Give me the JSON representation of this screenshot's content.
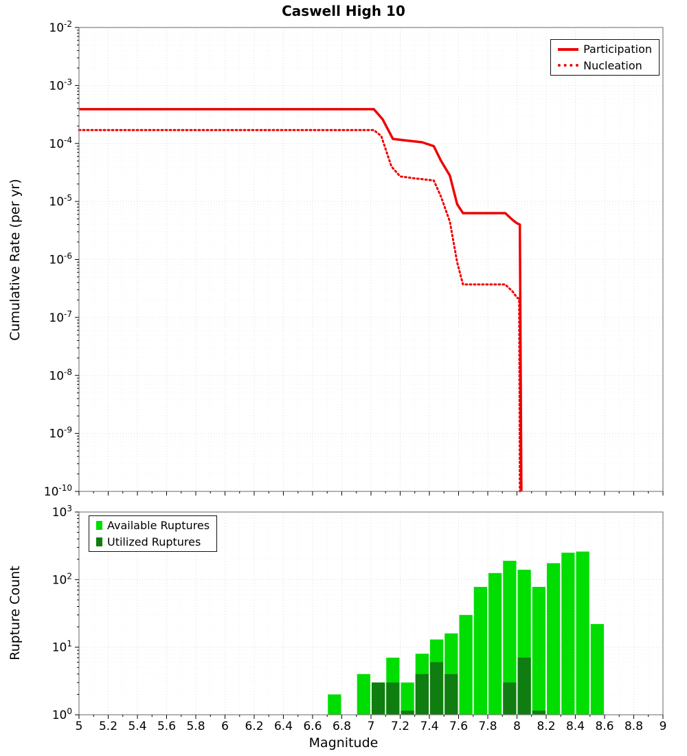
{
  "title": "Caswell High 10",
  "axes": {
    "x_label": "Magnitude",
    "x_tick_labels": [
      "5",
      "5.2",
      "5.4",
      "5.6",
      "5.8",
      "6",
      "6.2",
      "6.4",
      "6.6",
      "6.8",
      "7",
      "7.2",
      "7.4",
      "7.6",
      "7.8",
      "8",
      "8.2",
      "8.4",
      "8.6",
      "8.8",
      "9"
    ],
    "top_y_label": "Cumulative Rate (per yr)",
    "top_y_tick_exponents": [
      -2,
      -3,
      -4,
      -5,
      -6,
      -7,
      -8,
      -9,
      -10
    ],
    "bottom_y_label": "Rupture Count",
    "bottom_y_tick_exponents": [
      3,
      2,
      1,
      0
    ]
  },
  "chart_data": [
    {
      "type": "line",
      "title": "Caswell High 10",
      "ylabel": "Cumulative Rate (per yr)",
      "xlabel": "",
      "x_range": [
        5,
        9
      ],
      "y_range_exponents": [
        -10,
        -2
      ],
      "y_scale": "log",
      "grid": true,
      "legend_position": "top-right",
      "series": [
        {
          "name": "Participation",
          "color": "#ee0000",
          "line_style": "solid",
          "points": [
            [
              5.0,
              0.00039
            ],
            [
              7.02,
              0.00039
            ],
            [
              7.08,
              0.00026
            ],
            [
              7.15,
              0.00012
            ],
            [
              7.25,
              0.000112
            ],
            [
              7.35,
              0.000105
            ],
            [
              7.43,
              9e-05
            ],
            [
              7.48,
              5e-05
            ],
            [
              7.54,
              2.8e-05
            ],
            [
              7.59,
              9e-06
            ],
            [
              7.63,
              6.3e-06
            ],
            [
              7.92,
              6.3e-06
            ],
            [
              7.97,
              4.8e-06
            ],
            [
              8.0,
              4.2e-06
            ],
            [
              8.02,
              4e-06
            ],
            [
              8.03,
              1e-10
            ]
          ]
        },
        {
          "name": "Nucleation",
          "color": "#ee0000",
          "line_style": "dotted",
          "points": [
            [
              5.0,
              0.00017
            ],
            [
              7.02,
              0.00017
            ],
            [
              7.07,
              0.000135
            ],
            [
              7.14,
              4e-05
            ],
            [
              7.2,
              2.7e-05
            ],
            [
              7.3,
              2.5e-05
            ],
            [
              7.43,
              2.3e-05
            ],
            [
              7.48,
              1.2e-05
            ],
            [
              7.54,
              4.5e-06
            ],
            [
              7.59,
              9e-07
            ],
            [
              7.63,
              3.7e-07
            ],
            [
              7.92,
              3.7e-07
            ],
            [
              7.97,
              2.8e-07
            ],
            [
              8.0,
              2.2e-07
            ],
            [
              8.015,
              2.1e-07
            ],
            [
              8.02,
              1e-10
            ]
          ]
        }
      ]
    },
    {
      "type": "bar",
      "title": "",
      "ylabel": "Rupture Count",
      "xlabel": "Magnitude",
      "x_range": [
        5,
        9
      ],
      "y_range_exponents": [
        0,
        3
      ],
      "y_scale": "log",
      "grid": true,
      "legend_position": "top-left",
      "bar_width": 0.1,
      "categories": [
        6.75,
        6.95,
        7.05,
        7.15,
        7.25,
        7.35,
        7.45,
        7.55,
        7.65,
        7.75,
        7.85,
        7.95,
        8.05,
        8.15,
        8.25,
        8.35,
        8.45,
        8.55
      ],
      "series": [
        {
          "name": "Available Ruptures",
          "color": "#00dd00",
          "values": [
            2,
            4,
            3,
            7,
            3,
            8,
            13,
            16,
            30,
            78,
            125,
            190,
            140,
            78,
            175,
            250,
            260,
            22
          ]
        },
        {
          "name": "Utilized Ruptures",
          "color": "#0f7d0f",
          "values": [
            0,
            0,
            3,
            3,
            1,
            4,
            6,
            4,
            0,
            0,
            0,
            3,
            7,
            1,
            0,
            0,
            0,
            0
          ]
        }
      ]
    }
  ]
}
